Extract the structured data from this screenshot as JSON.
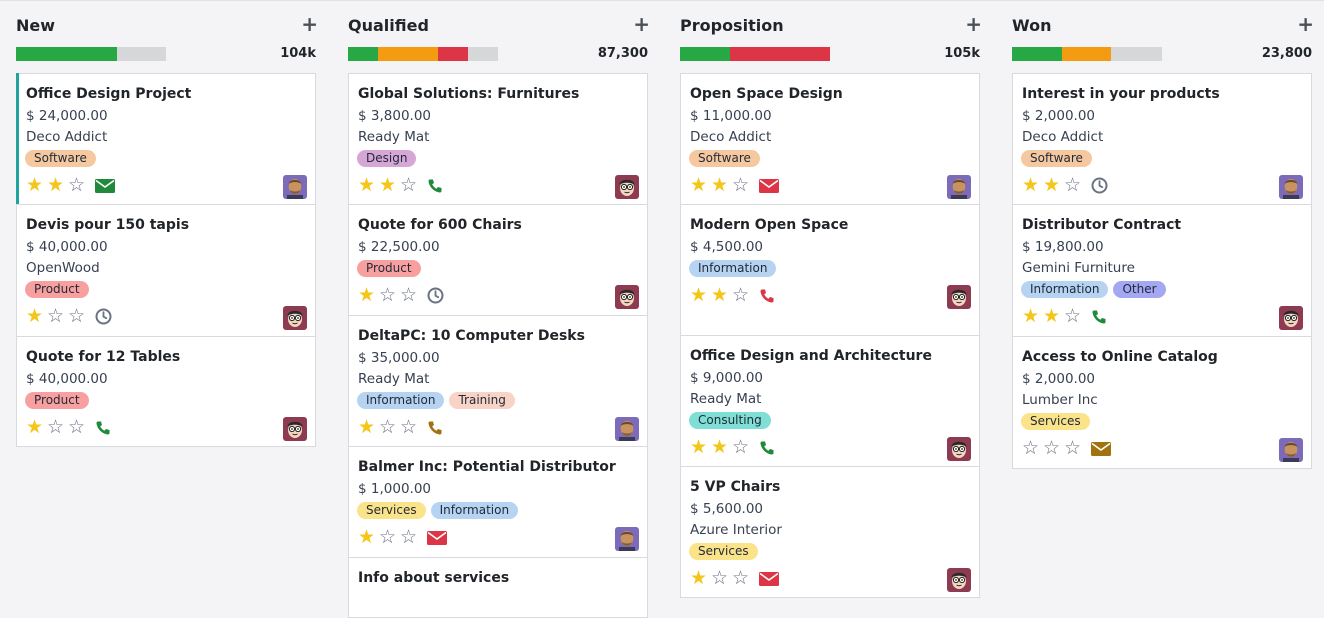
{
  "columns": [
    {
      "title": "New",
      "add": "+",
      "total": "104k",
      "progress": [
        {
          "color": "#28a745",
          "pct": 0.67
        }
      ],
      "cards": [
        {
          "title": "Office Design Project",
          "amount": "$ 24,000.00",
          "company": "Deco Addict",
          "tags": [
            {
              "label": "Software",
              "color": "#f6c89f"
            }
          ],
          "stars": 2,
          "activity": "email",
          "activity_color": "#1e8a3a",
          "avatar": "man",
          "accent": true
        },
        {
          "title": "Devis pour 150 tapis",
          "amount": "$ 40,000.00",
          "company": "OpenWood",
          "tags": [
            {
              "label": "Product",
              "color": "#f8a0a0"
            }
          ],
          "stars": 1,
          "activity": "clock",
          "activity_color": "#6b7280",
          "avatar": "cartoon"
        },
        {
          "title": "Quote for 12 Tables",
          "amount": "$ 40,000.00",
          "company": "",
          "tags": [
            {
              "label": "Product",
              "color": "#f8a0a0"
            }
          ],
          "stars": 1,
          "activity": "phone",
          "activity_color": "#1e8a3a",
          "avatar": "cartoon"
        }
      ]
    },
    {
      "title": "Qualified",
      "add": "+",
      "total": "87,300",
      "progress": [
        {
          "color": "#28a745",
          "pct": 0.2
        },
        {
          "color": "#f39c12",
          "pct": 0.4
        },
        {
          "color": "#dc3545",
          "pct": 0.2
        }
      ],
      "cards": [
        {
          "title": "Global Solutions: Furnitures",
          "amount": "$ 3,800.00",
          "company": "Ready Mat",
          "tags": [
            {
              "label": "Design",
              "color": "#d6a6d6"
            }
          ],
          "stars": 2,
          "activity": "phone",
          "activity_color": "#1e8a3a",
          "avatar": "cartoon"
        },
        {
          "title": "Quote for 600 Chairs",
          "amount": "$ 22,500.00",
          "company": "",
          "tags": [
            {
              "label": "Product",
              "color": "#f8a0a0"
            }
          ],
          "stars": 1,
          "activity": "clock",
          "activity_color": "#6b7280",
          "avatar": "cartoon"
        },
        {
          "title": "DeltaPC: 10 Computer Desks",
          "amount": "$ 35,000.00",
          "company": "Ready Mat",
          "tags": [
            {
              "label": "Information",
              "color": "#b6d4f2"
            },
            {
              "label": "Training",
              "color": "#f8d3c6"
            }
          ],
          "stars": 1,
          "activity": "phone",
          "activity_color": "#a0730f",
          "avatar": "man"
        },
        {
          "title": "Balmer Inc: Potential Distributor",
          "amount": "$ 1,000.00",
          "company": "",
          "tags": [
            {
              "label": "Services",
              "color": "#fbe38a"
            },
            {
              "label": "Information",
              "color": "#b6d4f2"
            }
          ],
          "stars": 1,
          "activity": "email",
          "activity_color": "#dc3545",
          "avatar": "man"
        },
        {
          "title": "Info about services",
          "amount": "",
          "company": "",
          "tags": [],
          "stars": 0,
          "activity": "",
          "activity_color": "",
          "avatar": ""
        }
      ]
    },
    {
      "title": "Proposition",
      "add": "+",
      "total": "105k",
      "progress": [
        {
          "color": "#28a745",
          "pct": 0.33
        },
        {
          "color": "#dc3545",
          "pct": 0.67
        }
      ],
      "cards": [
        {
          "title": "Open Space Design",
          "amount": "$ 11,000.00",
          "company": "Deco Addict",
          "tags": [
            {
              "label": "Software",
              "color": "#f6c89f"
            }
          ],
          "stars": 2,
          "activity": "email",
          "activity_color": "#dc3545",
          "avatar": "man"
        },
        {
          "title": "Modern Open Space",
          "amount": "$ 4,500.00",
          "company": "",
          "tags": [
            {
              "label": "Information",
              "color": "#b6d4f2"
            }
          ],
          "stars": 2,
          "activity": "phone",
          "activity_color": "#dc3545",
          "avatar": "cartoon"
        },
        {
          "title": "Office Design and Architecture",
          "amount": "$ 9,000.00",
          "company": "Ready Mat",
          "tags": [
            {
              "label": "Consulting",
              "color": "#7fdfd4"
            }
          ],
          "stars": 2,
          "activity": "phone",
          "activity_color": "#1e8a3a",
          "avatar": "cartoon"
        },
        {
          "title": "5 VP Chairs",
          "amount": "$ 5,600.00",
          "company": "Azure Interior",
          "tags": [
            {
              "label": "Services",
              "color": "#fbe38a"
            }
          ],
          "stars": 1,
          "activity": "email",
          "activity_color": "#dc3545",
          "avatar": "cartoon"
        }
      ]
    },
    {
      "title": "Won",
      "add": "+",
      "total": "23,800",
      "progress": [
        {
          "color": "#28a745",
          "pct": 0.33
        },
        {
          "color": "#f39c12",
          "pct": 0.33
        }
      ],
      "cards": [
        {
          "title": "Interest in your products",
          "amount": "$ 2,000.00",
          "company": "Deco Addict",
          "tags": [
            {
              "label": "Software",
              "color": "#f6c89f"
            }
          ],
          "stars": 2,
          "activity": "clock",
          "activity_color": "#6b7280",
          "avatar": "man"
        },
        {
          "title": "Distributor Contract",
          "amount": "$ 19,800.00",
          "company": "Gemini Furniture",
          "tags": [
            {
              "label": "Information",
              "color": "#b6d4f2"
            },
            {
              "label": "Other",
              "color": "#a4a8f2"
            }
          ],
          "stars": 2,
          "activity": "phone",
          "activity_color": "#1e8a3a",
          "avatar": "cartoon"
        },
        {
          "title": "Access to Online Catalog",
          "amount": "$ 2,000.00",
          "company": "Lumber Inc",
          "tags": [
            {
              "label": "Services",
              "color": "#fbe38a"
            }
          ],
          "stars": 0,
          "activity": "email",
          "activity_color": "#a0730f",
          "avatar": "man"
        }
      ]
    }
  ]
}
